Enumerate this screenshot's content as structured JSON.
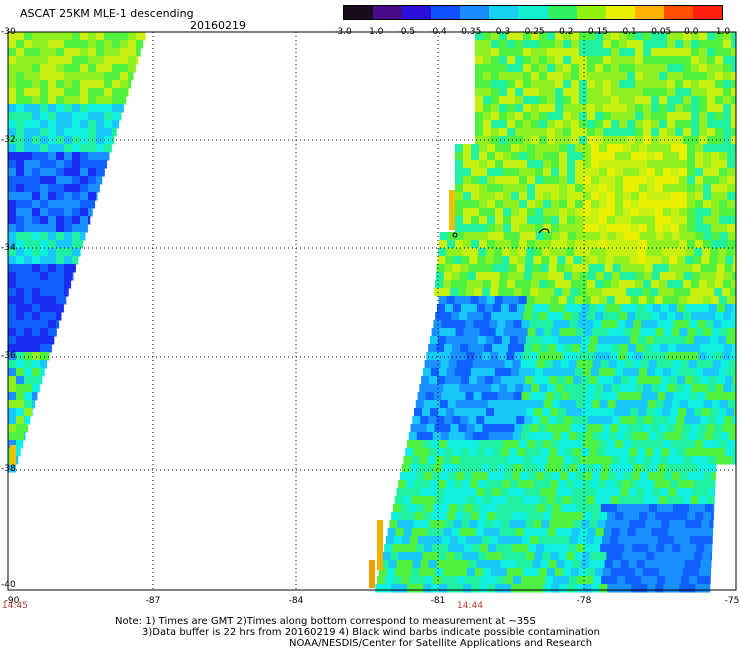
{
  "header": {
    "title": "ASCAT 25KM MLE-1 descending",
    "date": "20160219"
  },
  "colorbar": {
    "labels": [
      "-3.0",
      "-1.0",
      "-0.5",
      "-0.4",
      "-0.35",
      "-0.3",
      "-0.25",
      "-0.2",
      "-0.15",
      "-0.1",
      "-0.05",
      "0.0",
      "1.0"
    ],
    "colors": [
      "#1a0a1e",
      "#4a0a8c",
      "#2a10d8",
      "#1050ff",
      "#1a8cff",
      "#18d0f0",
      "#10f0d0",
      "#30f060",
      "#90f010",
      "#e8f000",
      "#ffb000",
      "#ff5000",
      "#ff2010"
    ]
  },
  "axes": {
    "lat_labels": [
      "-30",
      "-32",
      "-34",
      "-36",
      "-38",
      "-40"
    ],
    "lon_labels": [
      "-90",
      "-87",
      "-84",
      "-81",
      "-78",
      "-75"
    ],
    "times": [
      "14:45",
      "14:44"
    ]
  },
  "notes": {
    "line1": "Note: 1) Times are GMT 2)Times along bottom correspond to measurement at ~35S",
    "line2": "3)Data buffer is 22 hrs from 20160219 4) Black wind barbs indicate possible contamination",
    "line3": "NOAA/NESDIS/Center for Satellite Applications and Research"
  }
}
